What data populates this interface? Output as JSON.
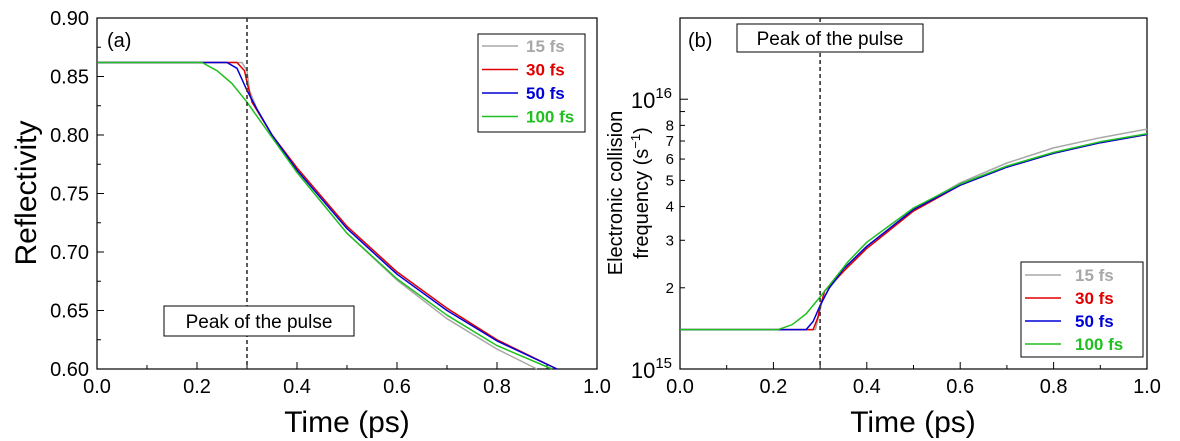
{
  "chart_data": [
    {
      "type": "line",
      "panel_label": "(a)",
      "xlabel": "Time (ps)",
      "ylabel": "Reflectivity",
      "xlim": [
        0.0,
        1.0
      ],
      "ylim": [
        0.6,
        0.9
      ],
      "x_ticks": [
        "0.0",
        "0.2",
        "0.4",
        "0.6",
        "0.8",
        "1.0"
      ],
      "y_ticks": [
        "0.60",
        "0.65",
        "0.70",
        "0.75",
        "0.80",
        "0.85",
        "0.90"
      ],
      "grid": false,
      "legend_position": "top-right",
      "annotation": {
        "text": "Peak of the pulse",
        "x": 0.3
      },
      "series": [
        {
          "name": "15 fs",
          "color": "#a8a8a8",
          "x": [
            0.0,
            0.29,
            0.3,
            0.305,
            0.32,
            0.35,
            0.4,
            0.5,
            0.6,
            0.7,
            0.8,
            0.88
          ],
          "y": [
            0.862,
            0.862,
            0.855,
            0.838,
            0.822,
            0.8,
            0.768,
            0.716,
            0.676,
            0.643,
            0.617,
            0.6
          ]
        },
        {
          "name": "30 fs",
          "color": "#e00000",
          "x": [
            0.0,
            0.28,
            0.295,
            0.3,
            0.31,
            0.35,
            0.4,
            0.5,
            0.6,
            0.7,
            0.8,
            0.92
          ],
          "y": [
            0.862,
            0.862,
            0.855,
            0.845,
            0.828,
            0.8,
            0.772,
            0.722,
            0.683,
            0.652,
            0.625,
            0.6
          ]
        },
        {
          "name": "50 fs",
          "color": "#0000d8",
          "x": [
            0.0,
            0.26,
            0.28,
            0.3,
            0.32,
            0.35,
            0.4,
            0.5,
            0.6,
            0.7,
            0.8,
            0.92
          ],
          "y": [
            0.862,
            0.862,
            0.857,
            0.838,
            0.822,
            0.8,
            0.77,
            0.72,
            0.681,
            0.65,
            0.624,
            0.6
          ]
        },
        {
          "name": "100 fs",
          "color": "#20c020",
          "x": [
            0.0,
            0.21,
            0.24,
            0.27,
            0.3,
            0.33,
            0.36,
            0.4,
            0.5,
            0.6,
            0.7,
            0.8,
            0.91
          ],
          "y": [
            0.862,
            0.862,
            0.855,
            0.844,
            0.828,
            0.81,
            0.792,
            0.768,
            0.716,
            0.677,
            0.646,
            0.62,
            0.6
          ]
        }
      ]
    },
    {
      "type": "line",
      "panel_label": "(b)",
      "xlabel": "Time (ps)",
      "ylabel_line1": "Electronic collision",
      "ylabel_line2": "frequency (s",
      "ylabel_sup": "−1",
      "ylabel_close": ")",
      "y_scale": "log",
      "xlim": [
        0.0,
        1.0
      ],
      "ylim": [
        1000000000000000.0,
        2e+16
      ],
      "x_ticks": [
        "0.0",
        "0.2",
        "0.4",
        "0.6",
        "0.8",
        "1.0"
      ],
      "y_major_ticks": [
        {
          "value": 1000000000000000.0,
          "base": "10",
          "exp": "15"
        },
        {
          "value": 1e+16,
          "base": "10",
          "exp": "16"
        }
      ],
      "y_minor_ticks": [
        {
          "value": 2000000000000000.0,
          "label": "2"
        },
        {
          "value": 3000000000000000.0,
          "label": "3"
        },
        {
          "value": 4000000000000000.0,
          "label": "4"
        },
        {
          "value": 5000000000000000.0,
          "label": "5"
        },
        {
          "value": 6000000000000000.0,
          "label": "6"
        },
        {
          "value": 7000000000000000.0,
          "label": "7"
        },
        {
          "value": 8000000000000000.0,
          "label": "8"
        },
        {
          "value": 9000000000000000.0,
          "label": ""
        }
      ],
      "grid": false,
      "legend_position": "bottom-right",
      "annotation": {
        "text": "Peak of the pulse",
        "x": 0.3
      },
      "series": [
        {
          "name": "15 fs",
          "color": "#a8a8a8",
          "x": [
            0.0,
            0.29,
            0.3,
            0.305,
            0.32,
            0.35,
            0.4,
            0.5,
            0.6,
            0.7,
            0.8,
            0.9,
            1.0
          ],
          "y": [
            1400000000000000.0,
            1400000000000000.0,
            1650000000000000.0,
            1800000000000000.0,
            2000000000000000.0,
            2300000000000000.0,
            2850000000000000.0,
            3900000000000000.0,
            4900000000000000.0,
            5800000000000000.0,
            6600000000000000.0,
            7200000000000000.0,
            7750000000000000.0
          ]
        },
        {
          "name": "30 fs",
          "color": "#e00000",
          "x": [
            0.0,
            0.285,
            0.295,
            0.3,
            0.31,
            0.35,
            0.4,
            0.5,
            0.6,
            0.7,
            0.8,
            0.9,
            1.0
          ],
          "y": [
            1400000000000000.0,
            1400000000000000.0,
            1550000000000000.0,
            1700000000000000.0,
            1950000000000000.0,
            2300000000000000.0,
            2800000000000000.0,
            3850000000000000.0,
            4800000000000000.0,
            5600000000000000.0,
            6300000000000000.0,
            6900000000000000.0,
            7400000000000000.0
          ]
        },
        {
          "name": "50 fs",
          "color": "#0000d8",
          "x": [
            0.0,
            0.27,
            0.285,
            0.3,
            0.32,
            0.35,
            0.4,
            0.5,
            0.6,
            0.7,
            0.8,
            0.9,
            1.0
          ],
          "y": [
            1400000000000000.0,
            1400000000000000.0,
            1500000000000000.0,
            1720000000000000.0,
            2000000000000000.0,
            2350000000000000.0,
            2850000000000000.0,
            3900000000000000.0,
            4800000000000000.0,
            5600000000000000.0,
            6300000000000000.0,
            6900000000000000.0,
            7400000000000000.0
          ]
        },
        {
          "name": "100 fs",
          "color": "#20c020",
          "x": [
            0.0,
            0.21,
            0.24,
            0.27,
            0.3,
            0.33,
            0.36,
            0.4,
            0.5,
            0.6,
            0.7,
            0.8,
            0.9,
            1.0
          ],
          "y": [
            1400000000000000.0,
            1400000000000000.0,
            1460000000000000.0,
            1600000000000000.0,
            1850000000000000.0,
            2150000000000000.0,
            2500000000000000.0,
            2950000000000000.0,
            3950000000000000.0,
            4850000000000000.0,
            5650000000000000.0,
            6350000000000000.0,
            6950000000000000.0,
            7450000000000000.0
          ]
        }
      ]
    }
  ]
}
